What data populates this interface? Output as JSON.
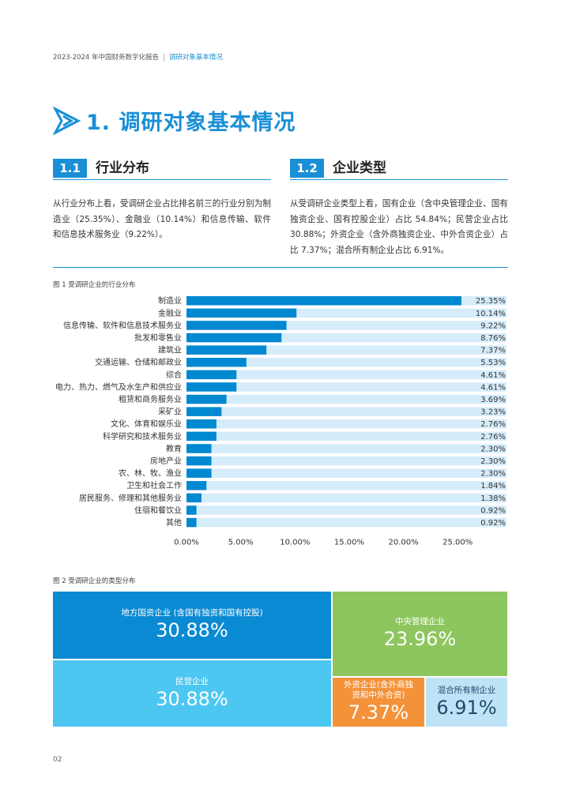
{
  "header": {
    "report": "2023-2024 年中国财务数字化报告",
    "separator": "|",
    "section": "调研对象基本情况"
  },
  "main_title": "1. 调研对象基本情况",
  "sections": [
    {
      "num": "1.1",
      "title": "行业分布",
      "text": "从行业分布上看，受调研企业占比排名前三的行业分别为制造业（25.35%）、金融业（10.14%）和信息传输、软件和信息技术服务业（9.22%）。"
    },
    {
      "num": "1.2",
      "title": "企业类型",
      "text": "从受调研企业类型上看，国有企业（含中央管理企业、国有独资企业、国有控股企业）占比 54.84%；民营企业占比 30.88%；外资企业（含外商独资企业、中外合资企业）占比 7.37%；混合所有制企业占比 6.91%。"
    }
  ],
  "fig1_caption": "图 1 受调研企业的行业分布",
  "fig2_caption": "图 2 受调研企业的类型分布",
  "page_number": "02",
  "colors": {
    "accent": "#1a8fd6",
    "bar": "#0088d1",
    "bar_track": "#d5ecfa",
    "t_local": "#0a8ad3",
    "t_private": "#4cc7f2",
    "t_central": "#8dc65e",
    "t_foreign": "#f4923a",
    "t_mixed": "#bee3f7"
  },
  "chart_data": [
    {
      "type": "bar",
      "orientation": "horizontal",
      "categories": [
        "制造业",
        "金融业",
        "信息传输、软件和信息技术服务业",
        "批发和零售业",
        "建筑业",
        "交通运输、仓储和邮政业",
        "综合",
        "电力、热力、燃气及水生产和供应业",
        "租赁和商务服务业",
        "采矿业",
        "文化、体育和娱乐业",
        "科学研究和技术服务业",
        "教育",
        "房地产业",
        "农、林、牧、渔业",
        "卫生和社会工作",
        "居民服务、修理和其他服务业",
        "住宿和餐饮业",
        "其他"
      ],
      "values": [
        25.35,
        10.14,
        9.22,
        8.76,
        7.37,
        5.53,
        4.61,
        4.61,
        3.69,
        3.23,
        2.76,
        2.76,
        2.3,
        2.3,
        2.3,
        1.84,
        1.38,
        0.92,
        0.92
      ],
      "value_labels": [
        "25.35%",
        "10.14%",
        "9.22%",
        "8.76%",
        "7.37%",
        "5.53%",
        "4.61%",
        "4.61%",
        "3.69%",
        "3.23%",
        "2.76%",
        "2.76%",
        "2.30%",
        "2.30%",
        "2.30%",
        "1.84%",
        "1.38%",
        "0.92%",
        "0.92%"
      ],
      "xticks": [
        "0.00%",
        "5.00%",
        "10.00%",
        "15.00%",
        "20.00%",
        "25.00%"
      ],
      "xlim": [
        0,
        29.5
      ],
      "grid": false
    },
    {
      "type": "treemap",
      "items": [
        {
          "label": "地方国资企业 (含国有独资和国有控股)",
          "value_label": "30.88%",
          "value": 30.88
        },
        {
          "label": "民营企业",
          "value_label": "30.88%",
          "value": 30.88
        },
        {
          "label": "中央管理企业",
          "value_label": "23.96%",
          "value": 23.96
        },
        {
          "label": "外资企业(含外商独资和中外合资)",
          "value_label": "7.37%",
          "value": 7.37
        },
        {
          "label": "混合所有制企业",
          "value_label": "6.91%",
          "value": 6.91
        }
      ]
    }
  ]
}
